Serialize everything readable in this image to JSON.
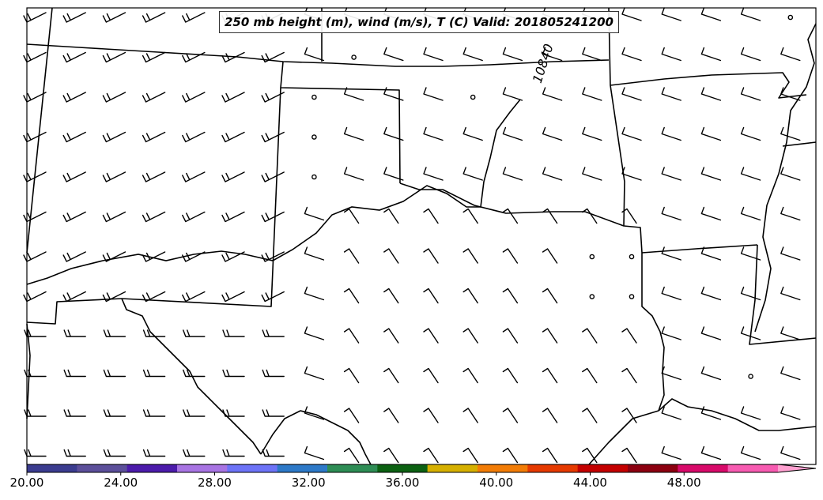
{
  "map": {
    "title": "250 mb height (m), wind (m/s), T (C) Valid: 201805241200",
    "contour_label": "10840",
    "colorbar": {
      "ticks": [
        "20.00",
        "24.00",
        "28.00",
        "32.00",
        "36.00",
        "40.00",
        "44.00",
        "48.00"
      ],
      "range": [
        20,
        52
      ],
      "colors": [
        "#3b3c8f",
        "#5c4f9a",
        "#4c1bab",
        "#a874e3",
        "#6d73f7",
        "#2d79c8",
        "#2e8d55",
        "#0c6112",
        "#d6b000",
        "#f27c06",
        "#e63a00",
        "#c40000",
        "#8c0010",
        "#d80a6a",
        "#f75bb1",
        "#ffa0d0"
      ],
      "extend": "max"
    }
  }
}
